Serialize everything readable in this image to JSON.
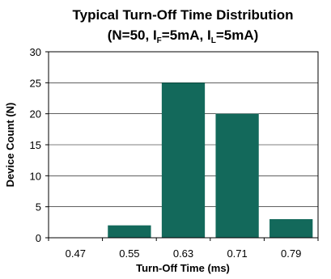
{
  "chart_data": {
    "type": "bar",
    "title_line1": "Typical Turn-Off Time Distribution",
    "title_line2": {
      "prefix": "(N=50, I",
      "sub1": "F",
      "middle": "=5mA, I",
      "sub2": "L",
      "suffix": "=5mA)"
    },
    "xlabel": "Turn-Off Time (ms)",
    "ylabel": "Device Count (N)",
    "categories": [
      "0.47",
      "0.55",
      "0.63",
      "0.71",
      "0.79"
    ],
    "values": [
      0,
      2,
      25,
      20,
      3
    ],
    "ylim": [
      0,
      30
    ],
    "yticks": [
      0,
      5,
      10,
      15,
      20,
      25,
      30
    ],
    "grid": true,
    "bar_color": "#13695b"
  }
}
